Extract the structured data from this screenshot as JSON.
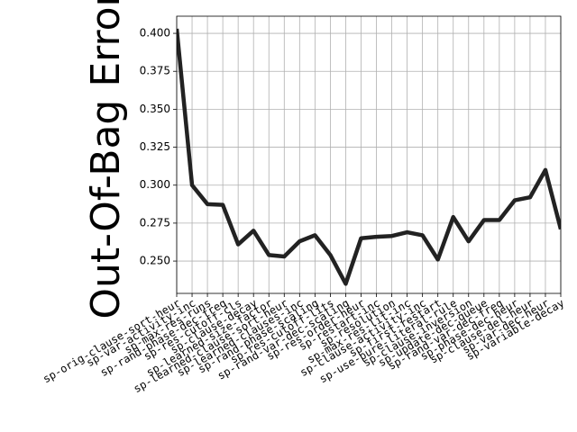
{
  "chart_data": {
    "type": "line",
    "y_label": "Out-Of-Bag Error",
    "categories": [
      "sp-orig-clause-sort-heur",
      "sp-var-activity-inc",
      "sp-max-res-runs",
      "sp-rand-phase-dec-freq",
      "sp-res-cutoff-cls",
      "sp-clause-decay",
      "sp-learned-size-factor",
      "sp-learned-clause-sort-heur",
      "sp-learned-clauses-inc",
      "sp-rand-phase-scaling",
      "sp-res-cutoff-lits",
      "sp-rand-var-dec-scaling",
      "sp-res-order-heur",
      "sp-restart-inc",
      "sp-resolution",
      "sp-max-res-lit-inc",
      "sp-clause-activity-inc",
      "sp-first-restart",
      "sp-use-pure-literal-rule",
      "sp-clause-inversion",
      "sp-update-dec-queue",
      "sp-rand-var-dec-freq",
      "sp-phase-dec-heur",
      "sp-clause-del-heur",
      "sp-var-dec-heur",
      "sp-variable-decay"
    ],
    "values": [
      0.403,
      0.3,
      0.2875,
      0.287,
      0.261,
      0.27,
      0.254,
      0.253,
      0.263,
      0.267,
      0.254,
      0.235,
      0.265,
      0.266,
      0.2665,
      0.269,
      0.267,
      0.251,
      0.279,
      0.263,
      0.277,
      0.277,
      0.29,
      0.292,
      0.31,
      0.271
    ],
    "color": "#222222",
    "ylim": [
      0.2287,
      0.4113
    ],
    "yticks": [
      {
        "value": 0.25,
        "label": "0.250"
      },
      0.275,
      {
        "value": 0.3,
        "label": "0.300"
      },
      0.325,
      {
        "value": 0.35,
        "label": "0.350"
      },
      0.375,
      {
        "value": 0.4,
        "label": "0.400"
      }
    ],
    "grid": true
  }
}
